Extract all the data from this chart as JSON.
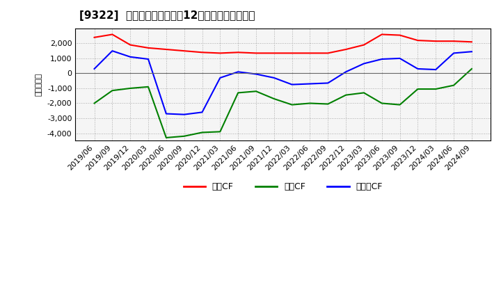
{
  "title": "[9322]  キャッシュフローの12か月移動合計の推移",
  "ylabel": "（百万円）",
  "background_color": "#ffffff",
  "plot_background": "#f5f5f5",
  "grid_color": "#aaaaaa",
  "ylim": [
    -4500,
    3000
  ],
  "yticks": [
    -4000,
    -3000,
    -2000,
    -1000,
    0,
    1000,
    2000
  ],
  "dates": [
    "2019/06",
    "2019/09",
    "2019/12",
    "2020/03",
    "2020/06",
    "2020/09",
    "2020/12",
    "2021/03",
    "2021/06",
    "2021/09",
    "2021/12",
    "2022/03",
    "2022/06",
    "2022/09",
    "2022/12",
    "2023/03",
    "2023/06",
    "2023/09",
    "2023/12",
    "2024/03",
    "2024/06",
    "2024/09"
  ],
  "operating_cf": [
    2400,
    2600,
    1900,
    1700,
    1600,
    1500,
    1400,
    1350,
    1400,
    1350,
    1350,
    1350,
    1350,
    1350,
    1600,
    1900,
    2600,
    2550,
    2200,
    2150,
    2150,
    2100
  ],
  "investing_cf": [
    -2000,
    -1150,
    -1000,
    -900,
    -4300,
    -4200,
    -3950,
    -3900,
    -1300,
    -1200,
    -1700,
    -2100,
    -2000,
    -2050,
    -1450,
    -1300,
    -2000,
    -2100,
    -1050,
    -1050,
    -800,
    300
  ],
  "free_cf": [
    300,
    1500,
    1100,
    950,
    -2700,
    -2750,
    -2600,
    -300,
    100,
    -50,
    -300,
    -750,
    -700,
    -650,
    100,
    650,
    950,
    1000,
    300,
    250,
    1350,
    1450
  ],
  "line_colors": {
    "operating": "#ff0000",
    "investing": "#008000",
    "free": "#0000ff"
  },
  "legend_labels": [
    "営業CF",
    "投資CF",
    "フリーCF"
  ],
  "legend_colors": [
    "#ff0000",
    "#008000",
    "#0000ff"
  ],
  "title_fontsize": 11,
  "axis_fontsize": 8,
  "legend_fontsize": 9
}
